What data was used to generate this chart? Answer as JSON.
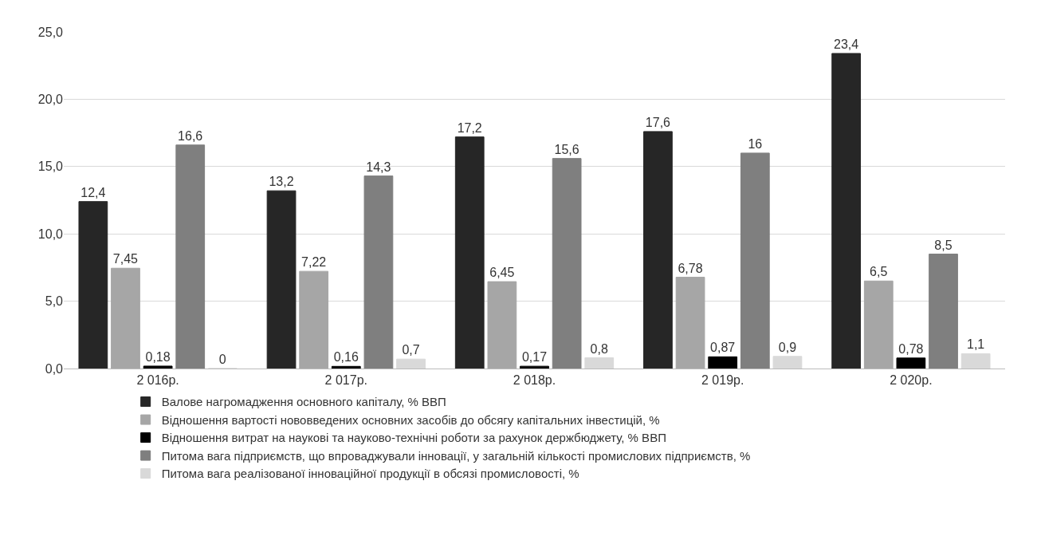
{
  "chart_data": {
    "type": "bar",
    "categories": [
      "2 016р.",
      "2 017р.",
      "2 018р.",
      "2 019р.",
      "2 020р."
    ],
    "series": [
      {
        "name": "Валове нагромадження основного капіталу, % ВВП",
        "color": "#262626",
        "values": [
          12.4,
          13.2,
          17.2,
          17.6,
          23.4
        ],
        "value_labels": [
          "12,4",
          "13,2",
          "17,2",
          "17,6",
          "23,4"
        ]
      },
      {
        "name": "Відношення вартості нововведених основних засобів до обсягу капітальних інвестицій, %",
        "color": "#a6a6a6",
        "values": [
          7.45,
          7.22,
          6.45,
          6.78,
          6.5
        ],
        "value_labels": [
          "7,45",
          "7,22",
          "6,45",
          "6,78",
          "6,5"
        ]
      },
      {
        "name": "Відношення витрат на наукові та науково-технічні роботи за рахунок держбюджету, % ВВП",
        "color": "#000000",
        "values": [
          0.18,
          0.16,
          0.17,
          0.87,
          0.78
        ],
        "value_labels": [
          "0,18",
          "0,16",
          "0,17",
          "0,87",
          "0,78"
        ]
      },
      {
        "name": "Питома вага підприємств, що впроваджували інновації, у загальній кількості промислових підприємств, %",
        "color": "#7f7f7f",
        "values": [
          16.6,
          14.3,
          15.6,
          16,
          8.5
        ],
        "value_labels": [
          "16,6",
          "14,3",
          "15,6",
          "16",
          "8,5"
        ]
      },
      {
        "name": "Питома вага реалізованої інноваційної продукції в обсязі промисловості, %",
        "color": "#d9d9d9",
        "values": [
          0,
          0.7,
          0.8,
          0.9,
          1.1
        ],
        "value_labels": [
          "0",
          "0,7",
          "0,8",
          "0,9",
          "1,1"
        ]
      }
    ],
    "ylim": [
      0,
      25
    ],
    "yticks": [
      {
        "value": 0,
        "label": "0,0"
      },
      {
        "value": 5,
        "label": "5,0"
      },
      {
        "value": 10,
        "label": "10,0"
      },
      {
        "value": 15,
        "label": "15,0"
      },
      {
        "value": 20,
        "label": "20,0"
      },
      {
        "value": 25,
        "label": "25,0"
      }
    ],
    "grid": "y",
    "legend": "bottom"
  }
}
